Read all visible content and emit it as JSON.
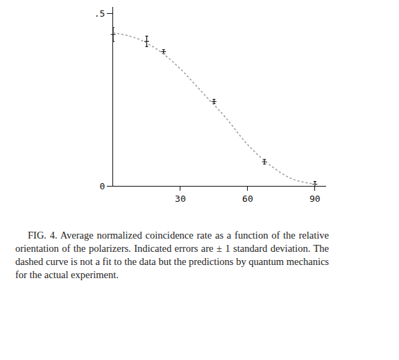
{
  "chart_data": {
    "type": "scatter",
    "caption": "FIG. 4. Average normalized coincidence rate as a function of the relative orientation of the polarizers. Indicated errors are ± 1 standard deviation. The dashed curve is not a fit to the data but the predictions by quantum mechanics for the actual experiment.",
    "xlim": [
      0,
      95
    ],
    "ylim": [
      0,
      0.52
    ],
    "xticks": [
      30,
      60,
      90
    ],
    "yticks": [
      0,
      {
        "value": 0.5,
        "label": ".5"
      }
    ],
    "grid": false,
    "series": [
      {
        "type": "scatter",
        "marker": "rectangle",
        "color": "#111111",
        "x": [
          0,
          15,
          22.5,
          45,
          67.5,
          90
        ],
        "values": [
          0.44,
          0.42,
          0.39,
          0.245,
          0.07,
          0.005
        ],
        "errors": [
          0.02,
          0.015,
          0.006,
          0.006,
          0.007,
          0.008
        ]
      },
      {
        "type": "line",
        "line_style": "dotted",
        "color": "#9a9a9a",
        "x": [
          0,
          10,
          20,
          30,
          40,
          50,
          60,
          70,
          80,
          90
        ],
        "values": [
          0.445,
          0.43,
          0.395,
          0.34,
          0.27,
          0.2,
          0.12,
          0.06,
          0.02,
          0.005
        ]
      }
    ]
  }
}
